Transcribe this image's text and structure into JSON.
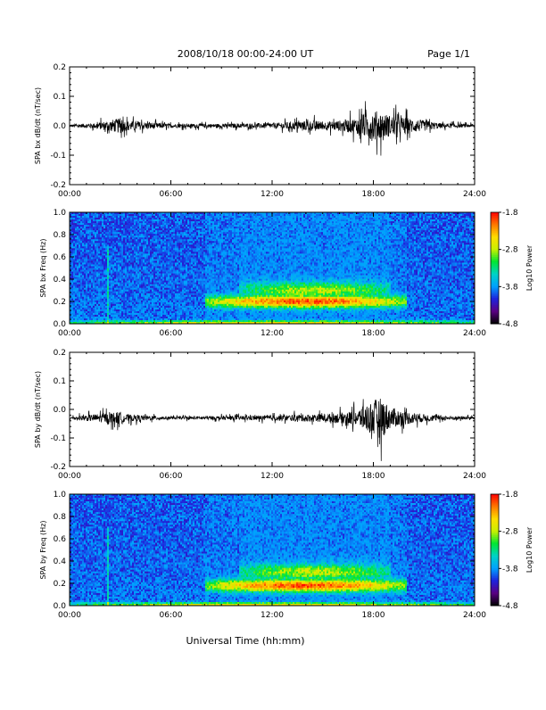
{
  "header": {
    "title": "2008/10/18  00:00-24:00 UT",
    "page": "Page 1/1"
  },
  "colors": {
    "trace": "#000000",
    "colormap": [
      "#000000",
      "#5a0082",
      "#1e22dc",
      "#00a0ff",
      "#00d2c8",
      "#00e632",
      "#c8f000",
      "#ffdc00",
      "#ff7800",
      "#ff0000"
    ]
  },
  "chart_data": [
    {
      "type": "line",
      "ylabel": "SPA bx dB/dt (nT/sec)",
      "ylim": [
        -0.2,
        0.2
      ],
      "yticks": [
        "0.2",
        "0.1",
        "0.0",
        "-0.1",
        "-0.2"
      ],
      "xticks": [
        "00:00",
        "06:00",
        "12:00",
        "18:00",
        "24:00"
      ],
      "xrange_hours": [
        0,
        24
      ],
      "baseline": 0.0,
      "series": [
        {
          "x_hours": [
            0,
            1.5,
            3.1,
            3.2,
            6,
            9,
            12,
            14.5,
            15,
            16,
            17,
            18,
            18.5,
            19,
            20,
            21,
            22,
            24
          ],
          "amplitude": [
            0.01,
            0.02,
            0.06,
            0.04,
            0.015,
            0.015,
            0.02,
            0.04,
            0.03,
            0.04,
            0.06,
            0.12,
            0.1,
            0.08,
            0.06,
            0.04,
            0.02,
            0.01
          ]
        }
      ]
    },
    {
      "type": "heatmap",
      "ylabel": "SPA bx Freq (Hz)",
      "ylim": [
        0.0,
        1.0
      ],
      "yticks": [
        "1.0",
        "0.8",
        "0.6",
        "0.4",
        "0.2",
        "0.0"
      ],
      "xticks": [
        "00:00",
        "06:00",
        "12:00",
        "18:00",
        "24:00"
      ],
      "colorbar": {
        "label": "Log10 Power",
        "ticks": [
          "-1.8",
          "-2.8",
          "-3.8",
          "-4.8"
        ],
        "range": [
          -4.8,
          -1.8
        ]
      },
      "bands": [
        {
          "t_start": 8,
          "t_end": 20,
          "f_center": 0.2,
          "f_width": 0.06,
          "peak": -2.0
        },
        {
          "t_start": 10,
          "t_end": 19,
          "f_center": 0.3,
          "f_width": 0.08,
          "peak": -2.8
        },
        {
          "t_start": 0,
          "t_end": 24,
          "f_center": 0.01,
          "f_width": 0.02,
          "peak": -2.6
        }
      ]
    },
    {
      "type": "line",
      "ylabel": "SPA by dB/dt (nT/sec)",
      "ylim": [
        -0.2,
        0.2
      ],
      "yticks": [
        "0.2",
        "0.1",
        "0.0",
        "-0.1",
        "-0.2"
      ],
      "xticks": [
        "00:00",
        "06:00",
        "12:00",
        "18:00",
        "24:00"
      ],
      "xrange_hours": [
        0,
        24
      ],
      "baseline": -0.03,
      "series": [
        {
          "x_hours": [
            0,
            1.5,
            3.1,
            3.2,
            6,
            9,
            12,
            14.5,
            15,
            16,
            17,
            18,
            18.5,
            19,
            20,
            21,
            22,
            24
          ],
          "amplitude": [
            0.01,
            0.03,
            0.05,
            0.03,
            0.01,
            0.015,
            0.02,
            0.03,
            0.03,
            0.04,
            0.06,
            0.14,
            0.16,
            0.08,
            0.05,
            0.03,
            0.02,
            0.01
          ]
        }
      ]
    },
    {
      "type": "heatmap",
      "ylabel": "SPA by Freq (Hz)",
      "ylim": [
        0.0,
        1.0
      ],
      "yticks": [
        "1.0",
        "0.8",
        "0.6",
        "0.4",
        "0.2",
        "0.0"
      ],
      "xticks": [
        "00:00",
        "06:00",
        "12:00",
        "18:00",
        "24:00"
      ],
      "colorbar": {
        "label": "Log10 Power",
        "ticks": [
          "-1.8",
          "-2.8",
          "-3.8",
          "-4.8"
        ],
        "range": [
          -4.8,
          -1.8
        ]
      },
      "bands": [
        {
          "t_start": 8,
          "t_end": 20,
          "f_center": 0.18,
          "f_width": 0.06,
          "peak": -2.0
        },
        {
          "t_start": 10,
          "t_end": 19,
          "f_center": 0.3,
          "f_width": 0.08,
          "peak": -2.8
        },
        {
          "t_start": 0,
          "t_end": 24,
          "f_center": 0.01,
          "f_width": 0.02,
          "peak": -2.6
        }
      ]
    }
  ],
  "xaxis_title": "Universal Time (hh:mm)"
}
